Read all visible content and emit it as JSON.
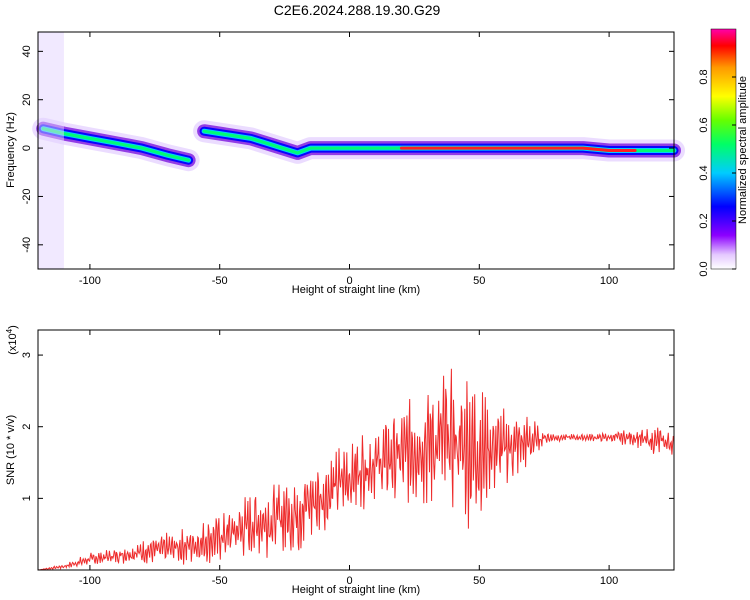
{
  "title": "C2E6.2024.288.19.30.G29",
  "colors": {
    "snr_line": "#ee2b2b",
    "spectrogram_ridge": "#0000ff"
  },
  "chart_data": [
    {
      "type": "heatmap",
      "name": "spectrogram",
      "xlabel": "Height of straight line (km)",
      "ylabel": "Frequency (Hz)",
      "xlim": [
        -120,
        125
      ],
      "ylim": [
        -50,
        48
      ],
      "xticks": [
        "-100",
        "-50",
        "0",
        "50",
        "100"
      ],
      "xtick_values": [
        -100,
        -50,
        0,
        50,
        100
      ],
      "yticks": [
        "-40",
        "-20",
        "0",
        "20",
        "40"
      ],
      "ytick_values": [
        -40,
        -20,
        0,
        20,
        40
      ],
      "colorbar": {
        "label": "Normalized spectral amplitude",
        "range": [
          0,
          1
        ],
        "ticks": [
          "0.0",
          "0.2",
          "0.4",
          "0.6",
          "0.8"
        ],
        "tick_values": [
          0,
          0.2,
          0.4,
          0.6,
          0.8
        ]
      },
      "ridge": {
        "x": [
          -118,
          -110,
          -100,
          -90,
          -80,
          -70,
          -62,
          -56,
          -50,
          -44,
          -38,
          -32,
          -26,
          -20,
          -15,
          -10,
          0,
          10,
          20,
          30,
          40,
          50,
          60,
          70,
          80,
          90,
          100,
          110,
          120,
          125
        ],
        "y": [
          8,
          6,
          4,
          2,
          0,
          -3,
          -5,
          7,
          6,
          5,
          4,
          2,
          0,
          -2,
          0,
          0,
          0,
          0,
          0,
          0,
          0,
          0,
          0,
          0,
          0,
          0,
          -1,
          -1,
          -1,
          -1
        ]
      },
      "grid": false
    },
    {
      "type": "line",
      "name": "snr",
      "xlabel": "Height of straight line (km)",
      "ylabel": "SNR (10 * v/v)",
      "exponent_label": "(x10",
      "exponent_sup": "4",
      "exponent_close": ")",
      "xlim": [
        -120,
        125
      ],
      "ylim": [
        0,
        3.35
      ],
      "xticks": [
        "-100",
        "-50",
        "0",
        "50",
        "100"
      ],
      "xtick_values": [
        -100,
        -50,
        0,
        50,
        100
      ],
      "yticks": [
        "1",
        "2",
        "3"
      ],
      "ytick_values": [
        1,
        2,
        3
      ],
      "series": [
        {
          "x": [
            -120,
            -110,
            -100,
            -90,
            -80,
            -70,
            -60,
            -50,
            -40,
            -30,
            -20,
            -15,
            -10,
            -5,
            0,
            5,
            10,
            15,
            20,
            25,
            30,
            35,
            40,
            45,
            50,
            55,
            60,
            65,
            70,
            75,
            80,
            90,
            100,
            110,
            115,
            120,
            125
          ],
          "values": [
            0.0,
            0.05,
            0.15,
            0.2,
            0.25,
            0.3,
            0.35,
            0.45,
            0.6,
            0.7,
            0.8,
            0.95,
            1.0,
            1.2,
            1.3,
            1.4,
            1.5,
            1.55,
            1.6,
            1.7,
            1.75,
            1.8,
            1.8,
            1.7,
            1.65,
            1.7,
            1.7,
            1.75,
            1.8,
            1.85,
            1.85,
            1.85,
            1.85,
            1.85,
            1.8,
            1.8,
            1.75
          ],
          "amplitude": [
            0.0,
            0.03,
            0.08,
            0.1,
            0.15,
            0.2,
            0.25,
            0.3,
            0.4,
            0.5,
            0.6,
            0.55,
            0.45,
            0.45,
            0.5,
            0.5,
            0.45,
            0.55,
            0.6,
            0.7,
            0.8,
            0.9,
            0.9,
            1.0,
            0.85,
            0.6,
            0.5,
            0.4,
            0.3,
            0.1,
            0.05,
            0.04,
            0.06,
            0.12,
            0.15,
            0.2,
            0.12
          ]
        }
      ],
      "grid": false
    }
  ]
}
